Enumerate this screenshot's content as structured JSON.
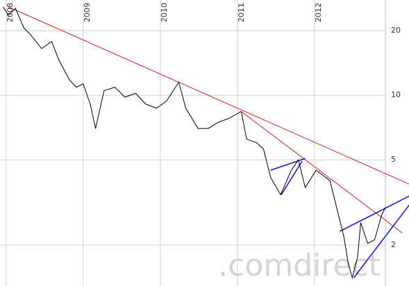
{
  "chart_data": {
    "type": "line",
    "log_y": true,
    "grid": true,
    "watermark": ".comdirect",
    "xlim": [
      2007.92,
      2012.92
    ],
    "xticks": [
      {
        "value": 2008,
        "label": "2008"
      },
      {
        "value": 2009,
        "label": "2009"
      },
      {
        "value": 2010,
        "label": "2010"
      },
      {
        "value": 2011,
        "label": "2011"
      },
      {
        "value": 2012,
        "label": "2012"
      }
    ],
    "ylim": [
      1.29,
      27.8
    ],
    "yticks": [
      2,
      5,
      10,
      20
    ],
    "series": [
      {
        "color": "#000000",
        "x": [
          2007.96,
          2008.03,
          2008.12,
          2008.23,
          2008.32,
          2008.46,
          2008.59,
          2008.68,
          2008.82,
          2008.91,
          2009.0,
          2009.09,
          2009.16,
          2009.27,
          2009.41,
          2009.54,
          2009.68,
          2009.81,
          2009.95,
          2010.08,
          2010.24,
          2010.33,
          2010.49,
          2010.62,
          2010.76,
          2010.89,
          2011.05,
          2011.12,
          2011.25,
          2011.34,
          2011.43,
          2011.56,
          2011.7,
          2011.79,
          2011.88,
          2012.02,
          2012.2,
          2012.29,
          2012.38,
          2012.44,
          2012.49,
          2012.56,
          2012.6,
          2012.69,
          2012.78,
          2012.87,
          2012.92
        ],
        "values": [
          25.8,
          23.6,
          25.4,
          20.6,
          19.1,
          16.5,
          17.8,
          14.7,
          11.8,
          10.9,
          11.3,
          9.1,
          7.0,
          10.5,
          10.9,
          9.8,
          10.2,
          9.1,
          8.7,
          9.4,
          11.5,
          8.7,
          7.0,
          7.0,
          7.5,
          7.8,
          8.4,
          6.25,
          6.0,
          5.6,
          4.15,
          3.44,
          4.47,
          5.0,
          3.71,
          4.47,
          4.0,
          2.97,
          2.2,
          1.63,
          1.41,
          1.77,
          2.55,
          2.04,
          2.12,
          2.75,
          3.0
        ]
      }
    ],
    "trendlines": [
      {
        "color": "#d42020",
        "x": [
          2008.03,
          2013.23
        ],
        "values": [
          25.8,
          3.85
        ]
      },
      {
        "color": "#d42020",
        "x": [
          2011.05,
          2013.14
        ],
        "values": [
          8.4,
          2.28
        ]
      },
      {
        "color": "#1a1ad0",
        "x": [
          2011.43,
          2011.88
        ],
        "values": [
          4.47,
          5.07
        ]
      },
      {
        "color": "#1a1ad0",
        "x": [
          2011.57,
          2011.84
        ],
        "values": [
          3.44,
          4.93
        ]
      },
      {
        "color": "#1a1ad0",
        "x": [
          2012.33,
          2013.23
        ],
        "values": [
          2.32,
          3.39
        ]
      },
      {
        "color": "#1a1ad0",
        "x": [
          2012.51,
          2013.23
        ],
        "values": [
          1.41,
          3.08
        ]
      }
    ]
  }
}
